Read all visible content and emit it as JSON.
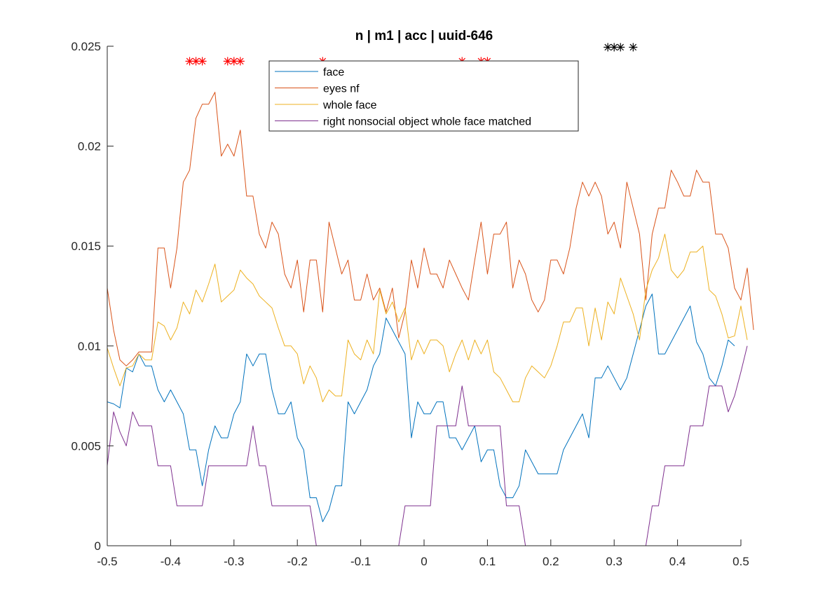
{
  "chart_data": {
    "type": "line",
    "title": "n | m1 | acc | uuid-646",
    "xlabel": "",
    "ylabel": "",
    "xlim": [
      -0.5,
      0.5
    ],
    "ylim": [
      0,
      0.025
    ],
    "xticks": [
      -0.5,
      -0.4,
      -0.3,
      -0.2,
      -0.1,
      0,
      0.1,
      0.2,
      0.3,
      0.4,
      0.5
    ],
    "xtick_labels": [
      "-0.5",
      "-0.4",
      "-0.3",
      "-0.2",
      "-0.1",
      "0",
      "0.1",
      "0.2",
      "0.3",
      "0.4",
      "0.5"
    ],
    "yticks": [
      0,
      0.005,
      0.01,
      0.015,
      0.02,
      0.025
    ],
    "ytick_labels": [
      "0",
      "0.005",
      "0.01",
      "0.015",
      "0.02",
      "0.025"
    ],
    "grid": false,
    "legend_position": "top-center",
    "x_start": -0.5,
    "x_step": 0.01,
    "series": [
      {
        "name": "face",
        "color": "#0072BD",
        "values": [
          0.0072,
          0.0071,
          0.0069,
          0.0089,
          0.0087,
          0.0096,
          0.009,
          0.009,
          0.0078,
          0.0072,
          0.0078,
          0.0072,
          0.0066,
          0.0048,
          0.0048,
          0.003,
          0.0048,
          0.006,
          0.0054,
          0.0054,
          0.0066,
          0.0072,
          0.0096,
          0.009,
          0.0096,
          0.0096,
          0.0078,
          0.0066,
          0.0066,
          0.0072,
          0.0054,
          0.0048,
          0.0024,
          0.0024,
          0.0012,
          0.0018,
          0.003,
          0.003,
          0.0072,
          0.0066,
          0.0072,
          0.0078,
          0.009,
          0.0096,
          0.0114,
          0.0108,
          0.0102,
          0.0096,
          0.0054,
          0.0072,
          0.0066,
          0.0066,
          0.0072,
          0.0072,
          0.0054,
          0.0054,
          0.0048,
          0.0054,
          0.006,
          0.0042,
          0.0048,
          0.0048,
          0.003,
          0.0024,
          0.0024,
          0.003,
          0.0048,
          0.0042,
          0.0036,
          0.0036,
          0.0036,
          0.0036,
          0.0048,
          0.0054,
          0.006,
          0.0066,
          0.0054,
          0.0084,
          0.0084,
          0.009,
          0.0084,
          0.0078,
          0.0084,
          0.0096,
          0.0108,
          0.012,
          0.0126,
          0.0096,
          0.0096,
          0.0102,
          0.0108,
          0.0114,
          0.012,
          0.0102,
          0.0096,
          0.0084,
          0.008,
          0.009,
          0.0103,
          0.01
        ]
      },
      {
        "name": "eyes nf",
        "color": "#D95319",
        "values": [
          0.0129,
          0.0108,
          0.0093,
          0.009,
          0.0093,
          0.0097,
          0.0097,
          0.0097,
          0.0149,
          0.0149,
          0.0129,
          0.0149,
          0.0182,
          0.0188,
          0.0214,
          0.0221,
          0.0221,
          0.0227,
          0.0195,
          0.0201,
          0.0195,
          0.0208,
          0.0175,
          0.0175,
          0.0156,
          0.0149,
          0.0162,
          0.0156,
          0.0136,
          0.0129,
          0.0143,
          0.0117,
          0.0143,
          0.0143,
          0.0117,
          0.0162,
          0.0149,
          0.0136,
          0.0143,
          0.0123,
          0.0123,
          0.0136,
          0.0123,
          0.0129,
          0.0117,
          0.0129,
          0.0104,
          0.0117,
          0.0143,
          0.0129,
          0.0149,
          0.0136,
          0.0136,
          0.0129,
          0.0143,
          0.0136,
          0.0129,
          0.0123,
          0.0143,
          0.0162,
          0.0136,
          0.0156,
          0.0156,
          0.0162,
          0.0129,
          0.0143,
          0.0136,
          0.0123,
          0.0117,
          0.0123,
          0.0143,
          0.0143,
          0.0136,
          0.0149,
          0.0169,
          0.0182,
          0.0175,
          0.0182,
          0.0175,
          0.0156,
          0.0162,
          0.0149,
          0.0182,
          0.0169,
          0.0156,
          0.0123,
          0.0156,
          0.0169,
          0.0169,
          0.0188,
          0.0182,
          0.0175,
          0.0175,
          0.0188,
          0.0182,
          0.0182,
          0.0156,
          0.0156,
          0.0149,
          0.0129,
          0.0123,
          0.0139,
          0.0108
        ]
      },
      {
        "name": "whole face",
        "color": "#EDB120",
        "values": [
          0.0099,
          0.0089,
          0.008,
          0.0089,
          0.009,
          0.0096,
          0.0093,
          0.0093,
          0.0112,
          0.011,
          0.0103,
          0.0109,
          0.0122,
          0.0116,
          0.0128,
          0.0122,
          0.0131,
          0.0141,
          0.0122,
          0.0125,
          0.0128,
          0.0138,
          0.0134,
          0.0131,
          0.0125,
          0.0122,
          0.0119,
          0.0109,
          0.01,
          0.01,
          0.0096,
          0.0081,
          0.009,
          0.0084,
          0.0072,
          0.0078,
          0.0075,
          0.0075,
          0.0103,
          0.0096,
          0.0093,
          0.0103,
          0.0096,
          0.0128,
          0.0116,
          0.0122,
          0.0112,
          0.0119,
          0.0093,
          0.0103,
          0.0096,
          0.0103,
          0.0103,
          0.01,
          0.0087,
          0.0096,
          0.0103,
          0.0093,
          0.0103,
          0.0096,
          0.0103,
          0.0087,
          0.0084,
          0.0078,
          0.0072,
          0.0072,
          0.0084,
          0.009,
          0.0087,
          0.0084,
          0.009,
          0.01,
          0.0112,
          0.0112,
          0.0119,
          0.0119,
          0.01,
          0.0119,
          0.0103,
          0.0122,
          0.0116,
          0.0134,
          0.0125,
          0.0116,
          0.0103,
          0.0128,
          0.0138,
          0.0144,
          0.0156,
          0.0138,
          0.0134,
          0.0138,
          0.0147,
          0.0147,
          0.015,
          0.0128,
          0.0125,
          0.0116,
          0.0104,
          0.0105,
          0.012,
          0.0103
        ]
      },
      {
        "name": "right nonsocial object whole face matched",
        "color": "#7E2F8E",
        "values": [
          0.004,
          0.0067,
          0.0057,
          0.005,
          0.0067,
          0.006,
          0.006,
          0.006,
          0.004,
          0.004,
          0.004,
          0.002,
          0.002,
          0.002,
          0.002,
          0.002,
          0.004,
          0.004,
          0.004,
          0.004,
          0.004,
          0.004,
          0.004,
          0.006,
          0.004,
          0.004,
          0.002,
          0.002,
          0.002,
          0.002,
          0.002,
          0.002,
          0.002,
          0.0,
          0.0,
          0.0,
          0.0,
          0.0,
          0.0,
          0.0,
          0.0,
          0.0,
          0.0,
          0.0,
          0.0,
          0.0,
          0.0,
          0.002,
          0.002,
          0.002,
          0.002,
          0.002,
          0.006,
          0.006,
          0.006,
          0.006,
          0.008,
          0.006,
          0.006,
          0.006,
          0.006,
          0.006,
          0.006,
          0.002,
          0.002,
          0.002,
          0.0,
          0.0,
          0.0,
          0.0,
          0.0,
          0.0,
          0.0,
          0.0,
          0.0,
          0.0,
          0.0,
          0.0,
          0.0,
          0.0,
          0.0,
          0.0,
          0.0,
          0.0,
          0.0,
          0.0,
          0.002,
          0.002,
          0.004,
          0.004,
          0.004,
          0.004,
          0.006,
          0.006,
          0.006,
          0.008,
          0.008,
          0.008,
          0.0067,
          0.0075,
          0.0087,
          0.01
        ]
      }
    ],
    "markers": [
      {
        "color": "#FF0000",
        "y": 0.02425,
        "x": [
          -0.37,
          -0.36,
          -0.35,
          -0.31,
          -0.3,
          -0.29,
          -0.16,
          0.06,
          0.09,
          0.1
        ]
      },
      {
        "color": "#000000",
        "y": 0.02495,
        "x": [
          0.29,
          0.3,
          0.31,
          0.33
        ]
      }
    ]
  }
}
